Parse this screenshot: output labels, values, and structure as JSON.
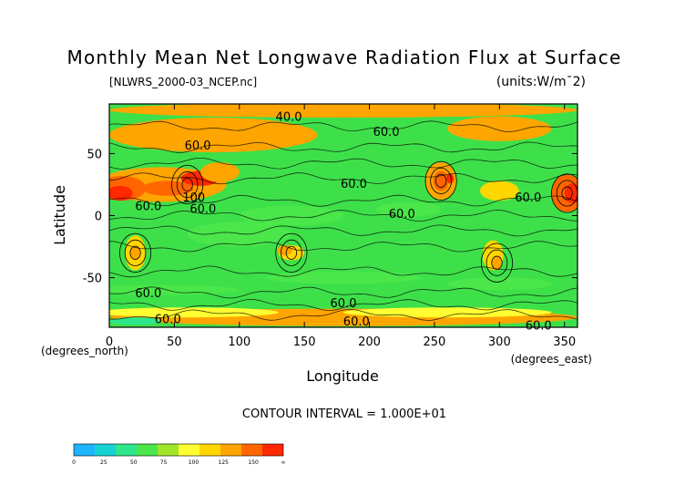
{
  "chart_data": {
    "type": "heatmap",
    "title": "Monthly Mean Net Longwave Radiation Flux at Surface",
    "subtitle_left": "[NLWRS_2000-03_NCEP.nc]",
    "subtitle_right": "(units:W/m¯2)",
    "xlabel": "Longitude",
    "ylabel": "Latitude",
    "x_unit_note": "(degrees_east)",
    "y_unit_note": "(degrees_north)",
    "xlim": [
      0,
      360
    ],
    "ylim": [
      -90,
      90
    ],
    "x_ticks": [
      0,
      50,
      100,
      150,
      200,
      250,
      300,
      350
    ],
    "y_ticks": [
      50,
      0,
      -50
    ],
    "contour_note": "CONTOUR INTERVAL = 1.000E+01",
    "contour_labels": [
      {
        "text": "40.0",
        "x": 138,
        "y": 80
      },
      {
        "text": "60.0",
        "x": 68,
        "y": 57
      },
      {
        "text": "60.0",
        "x": 213,
        "y": 68
      },
      {
        "text": "60.0",
        "x": 188,
        "y": 26
      },
      {
        "text": "60.0",
        "x": 322,
        "y": 15
      },
      {
        "text": "60.0",
        "x": 225,
        "y": 2
      },
      {
        "text": "100",
        "x": 65,
        "y": 15
      },
      {
        "text": "60.0",
        "x": 72,
        "y": 6
      },
      {
        "text": "60.0",
        "x": 30,
        "y": 8
      },
      {
        "text": "60.0",
        "x": 30,
        "y": -62
      },
      {
        "text": "60.0",
        "x": 180,
        "y": -70
      },
      {
        "text": "60.0",
        "x": 45,
        "y": -83
      },
      {
        "text": "60.0",
        "x": 190,
        "y": -85
      },
      {
        "text": "60.0",
        "x": 330,
        "y": -88
      }
    ],
    "colorbar": {
      "levels": [
        "0",
        "25",
        "50",
        "75",
        "100",
        "125",
        "150",
        "∞"
      ],
      "colors": [
        "#1eb4ff",
        "#16d2d2",
        "#2ee68c",
        "#4ae64a",
        "#a0e628",
        "#ffff32",
        "#ffd700",
        "#ffa500",
        "#ff6600",
        "#ff2800"
      ]
    }
  }
}
